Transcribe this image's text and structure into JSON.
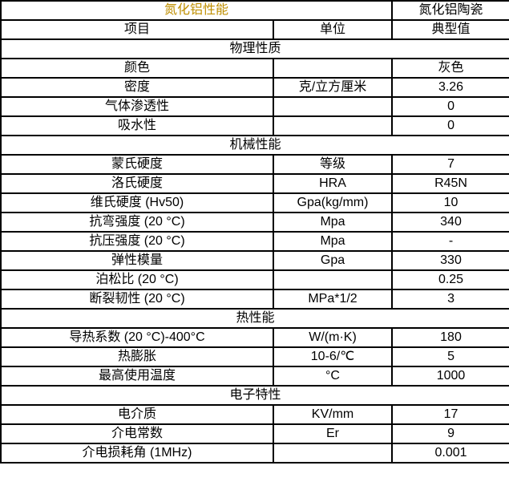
{
  "header": {
    "title": "氮化铝性能",
    "product": "氮化铝陶瓷"
  },
  "columns": [
    "项目",
    "单位",
    "典型值"
  ],
  "colors": {
    "title_bg": "#FFE699",
    "title_text": "#BF8F00",
    "border": "#000000",
    "body_text": "#000000",
    "cell_bg": "#FFFFFF"
  },
  "sections": [
    {
      "name": "物理性质",
      "rows": [
        [
          "颜色",
          "",
          "灰色"
        ],
        [
          "密度",
          "克/立方厘米",
          "3.26"
        ],
        [
          "气体渗透性",
          "",
          "0"
        ],
        [
          "吸水性",
          "",
          "0"
        ]
      ]
    },
    {
      "name": "机械性能",
      "rows": [
        [
          "蒙氏硬度",
          "等级",
          "7"
        ],
        [
          "洛氏硬度",
          "HRA",
          "R45N"
        ],
        [
          "维氏硬度 (Hv50)",
          "Gpa(kg/mm)",
          "10"
        ],
        [
          "抗弯强度 (20 °C)",
          "Mpa",
          "340"
        ],
        [
          "抗压强度 (20 °C)",
          "Mpa",
          "-"
        ],
        [
          "弹性模量",
          "Gpa",
          "330"
        ],
        [
          "泊松比 (20 °C)",
          "",
          "0.25"
        ],
        [
          "断裂韧性 (20 °C)",
          "MPa*1/2",
          "3"
        ]
      ]
    },
    {
      "name": "热性能",
      "rows": [
        [
          "导热系数 (20 °C)-400°C",
          "W/(m·K)",
          "180"
        ],
        [
          "热膨胀",
          "10-6/℃",
          "5"
        ],
        [
          "最高使用温度",
          "°C",
          "1000"
        ]
      ]
    },
    {
      "name": "电子特性",
      "rows": [
        [
          "电介质",
          "KV/mm",
          "17"
        ],
        [
          "介电常数",
          "Er",
          "9"
        ],
        [
          "介电损耗角 (1MHz)",
          "",
          "0.001"
        ]
      ]
    }
  ]
}
